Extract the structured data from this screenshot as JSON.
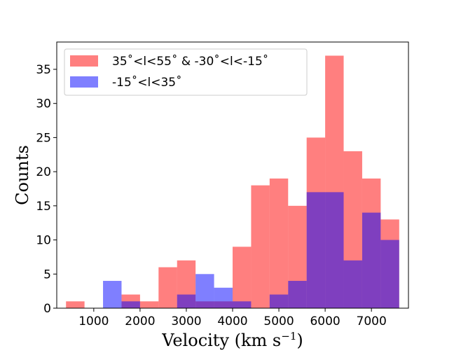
{
  "chart_data": {
    "type": "bar",
    "title": "",
    "xlabel": "Velocity (km s",
    "xlabel_sup": "−1",
    "xlabel_tail": ")",
    "ylabel": "Counts",
    "xlim": [
      200,
      7800
    ],
    "ylim": [
      0,
      39
    ],
    "bin_edges": [
      400,
      672,
      944,
      1216,
      1488,
      1760,
      2032,
      2304,
      2576,
      2848,
      3120,
      3392,
      3664,
      3936,
      4208,
      4480,
      4752,
      5024,
      5296,
      5568,
      5840,
      6112,
      6384,
      6656,
      6928,
      7200,
      7472
    ],
    "x_ticks": [
      1000,
      2000,
      3000,
      4000,
      5000,
      6000,
      7000
    ],
    "x_tick_labels": [
      "1000",
      "2000",
      "3000",
      "4000",
      "5000",
      "6000",
      "7000"
    ],
    "y_ticks": [
      0,
      5,
      10,
      15,
      20,
      25,
      30,
      35
    ],
    "y_tick_labels": [
      "0",
      "5",
      "10",
      "15",
      "20",
      "25",
      "30",
      "35"
    ],
    "series": [
      {
        "name": "35˚<l<55˚ & -30˚<l<-15˚",
        "color": "#ff0000",
        "opacity": 0.5,
        "bin_edges": [
          400,
          800,
          1200,
          1600,
          2000,
          2400,
          2800,
          3200,
          3600,
          4000,
          4400,
          4800,
          5200,
          5600,
          6000,
          6400,
          6800,
          7200,
          7600
        ],
        "values": [
          1,
          0,
          0,
          2,
          1,
          6,
          7,
          1,
          1,
          9,
          18,
          19,
          15,
          25,
          37,
          23,
          19,
          13
        ]
      },
      {
        "name": "-15˚<l<35˚",
        "color": "#0000ff",
        "opacity": 0.5,
        "bin_edges": [
          400,
          800,
          1200,
          1600,
          2000,
          2400,
          2800,
          3200,
          3600,
          4000,
          4400,
          4800,
          5200,
          5600,
          6000,
          6400,
          6800,
          7200,
          7600
        ],
        "values": [
          0,
          0,
          4,
          1,
          0,
          0,
          2,
          5,
          3,
          1,
          0,
          2,
          4,
          17,
          17,
          7,
          14,
          10
        ]
      }
    ],
    "legend_position": "top-left"
  }
}
